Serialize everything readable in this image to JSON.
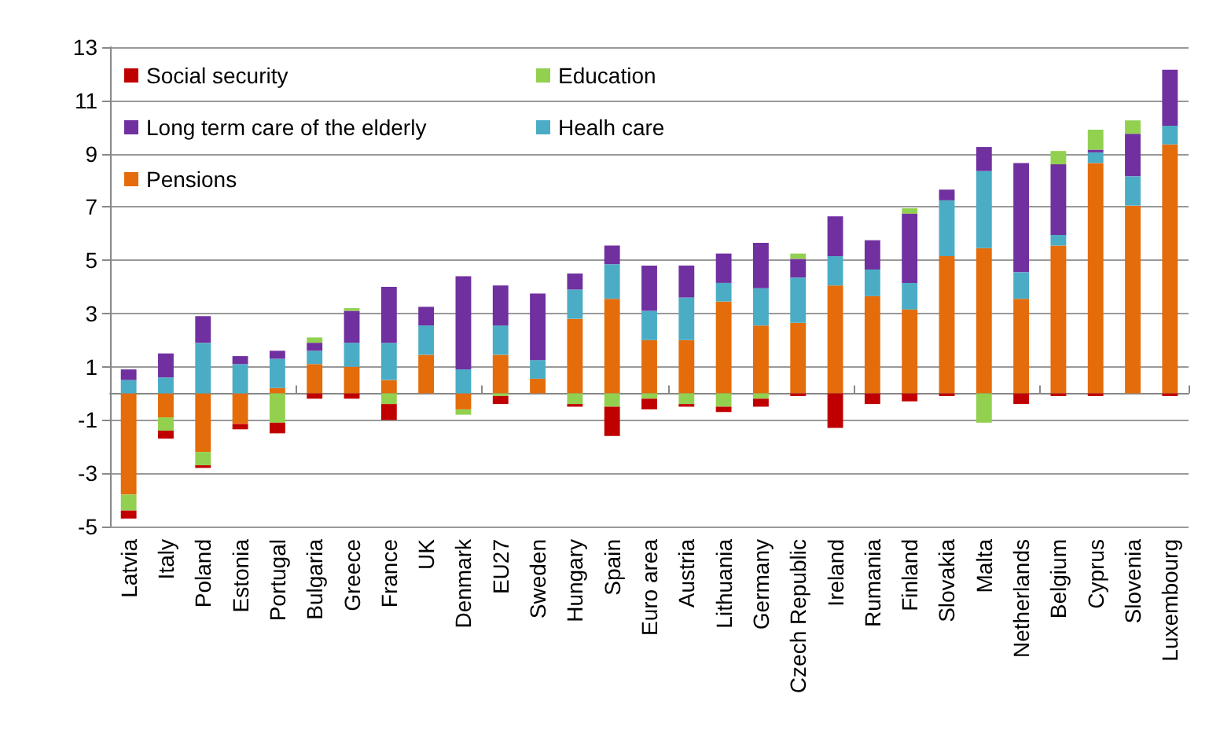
{
  "chart_data": {
    "type": "bar",
    "stacked": true,
    "categories": [
      "Latvia",
      "Italy",
      "Poland",
      "Estonia",
      "Portugal",
      "Bulgaria",
      "Greece",
      "France",
      "UK",
      "Denmark",
      "EU27",
      "Sweden",
      "Hungary",
      "Spain",
      "Euro area",
      "Austria",
      "Lithuania",
      "Germany",
      "Czech Republic",
      "Ireland",
      "Rumania",
      "Finland",
      "Slovakia",
      "Malta",
      "Netherlands",
      "Belgium",
      "Cyprus",
      "Slovenia",
      "Luxembourg"
    ],
    "series": [
      {
        "name": "Pensions",
        "color": "#e46c0a",
        "values": [
          -3.8,
          -0.9,
          -2.2,
          -1.15,
          0.2,
          1.1,
          1.0,
          0.5,
          1.45,
          -0.6,
          1.45,
          0.55,
          2.8,
          3.55,
          2.0,
          2.0,
          3.45,
          2.55,
          2.65,
          4.05,
          3.65,
          3.15,
          5.15,
          5.45,
          3.55,
          5.55,
          8.65,
          7.05,
          9.35
        ]
      },
      {
        "name": "Healh care",
        "color": "#4bacc6",
        "values": [
          0.5,
          0.6,
          1.9,
          1.1,
          1.1,
          0.5,
          0.9,
          1.4,
          1.1,
          0.9,
          1.1,
          0.7,
          1.1,
          1.3,
          1.1,
          1.6,
          0.7,
          1.4,
          1.7,
          1.1,
          1.0,
          1.0,
          2.1,
          2.9,
          1.0,
          0.4,
          0.4,
          1.1,
          0.7
        ]
      },
      {
        "name": "Long term care of the elderly",
        "color": "#7030a0",
        "values": [
          0.4,
          0.9,
          1.0,
          0.3,
          0.3,
          0.3,
          1.2,
          2.1,
          0.7,
          3.5,
          1.5,
          2.5,
          0.6,
          0.7,
          1.7,
          1.2,
          1.1,
          1.7,
          0.7,
          1.5,
          1.1,
          2.6,
          0.4,
          0.9,
          4.1,
          2.65,
          0.1,
          1.6,
          2.1
        ]
      },
      {
        "name": "Education",
        "color": "#92d050",
        "values": [
          -0.6,
          -0.5,
          -0.5,
          null,
          -1.1,
          0.2,
          0.1,
          -0.4,
          null,
          -0.2,
          -0.1,
          null,
          -0.4,
          -0.5,
          -0.2,
          -0.4,
          -0.5,
          -0.2,
          0.2,
          null,
          null,
          0.2,
          null,
          -1.1,
          null,
          0.5,
          0.75,
          0.5,
          null
        ]
      },
      {
        "name": "Social security",
        "color": "#c00000",
        "values": [
          -0.3,
          -0.3,
          -0.1,
          -0.2,
          -0.4,
          -0.2,
          -0.2,
          -0.6,
          null,
          null,
          -0.3,
          null,
          -0.1,
          -1.1,
          -0.4,
          -0.1,
          -0.2,
          -0.3,
          -0.1,
          -1.3,
          -0.4,
          -0.3,
          -0.1,
          null,
          -0.4,
          -0.1,
          -0.1,
          null,
          -0.1
        ]
      }
    ],
    "ylim": [
      -5,
      13
    ],
    "yticks": [
      -5,
      -3,
      -1,
      1,
      3,
      5,
      7,
      9,
      11,
      13
    ],
    "grid": "y",
    "legend": "top left"
  }
}
